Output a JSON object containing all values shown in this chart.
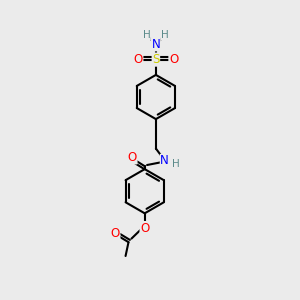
{
  "bg_color": "#ebebeb",
  "atom_colors": {
    "C": "#000000",
    "H": "#5a8a8a",
    "N": "#0000ff",
    "O": "#ff0000",
    "S": "#cccc00"
  },
  "bond_color": "#000000",
  "bond_width": 1.5,
  "figsize": [
    3.0,
    3.0
  ],
  "dpi": 100,
  "xlim": [
    0,
    10
  ],
  "ylim": [
    0,
    10
  ]
}
